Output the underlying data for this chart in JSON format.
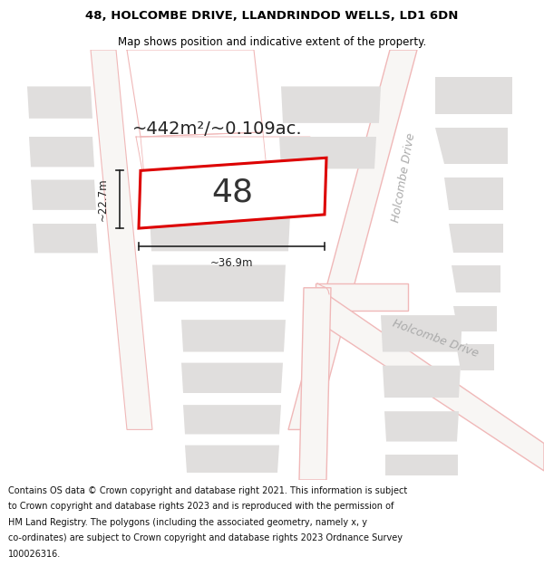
{
  "title_line1": "48, HOLCOMBE DRIVE, LLANDRINDOD WELLS, LD1 6DN",
  "title_line2": "Map shows position and indicative extent of the property.",
  "area_text": "~442m²/~0.109ac.",
  "property_number": "48",
  "dim_width": "~36.9m",
  "dim_height": "~22.7m",
  "road_label_upper": "Holcombe Drive",
  "road_label_lower": "Holcombe Drive",
  "footer_lines": [
    "Contains OS data © Crown copyright and database right 2021. This information is subject",
    "to Crown copyright and database rights 2023 and is reproduced with the permission of",
    "HM Land Registry. The polygons (including the associated geometry, namely x, y",
    "co-ordinates) are subject to Crown copyright and database rights 2023 Ordnance Survey",
    "100026316."
  ],
  "map_bg": "#ffffff",
  "building_fill": "#e0dedd",
  "building_edge": "none",
  "road_line_color": "#f0b8b8",
  "property_outline_color": "#dd0000",
  "property_fill": "#ffffff",
  "dim_color": "#222222",
  "area_text_color": "#222222",
  "road_label_color": "#aaaaaa",
  "title_fontsize": 10,
  "footer_fontsize": 7.0
}
